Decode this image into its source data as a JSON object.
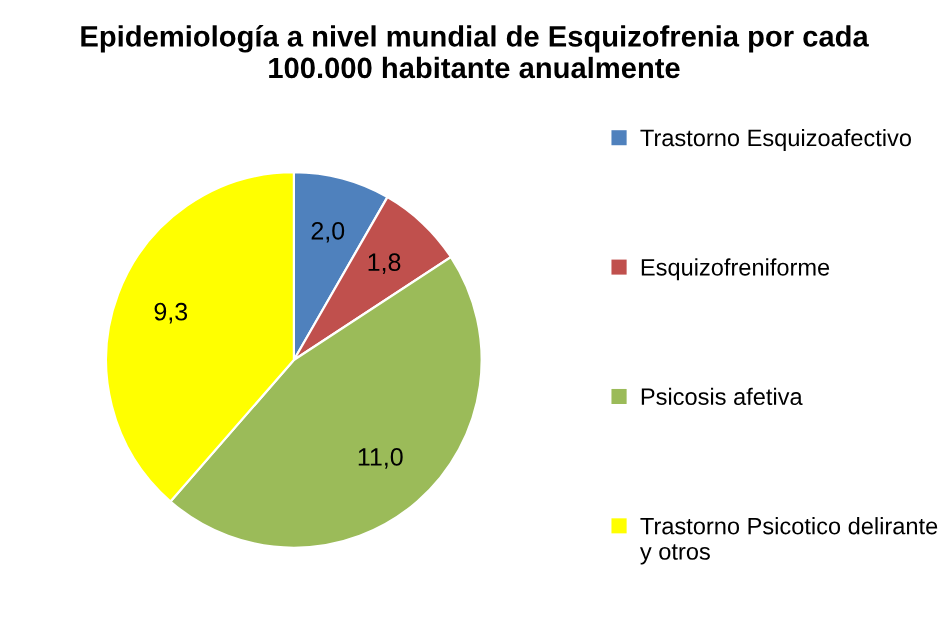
{
  "chart_data": {
    "type": "pie",
    "title": "Epidemiología a nivel mundial de Esquizofrenia por cada\n100.000 habitante anualmente",
    "categories": [
      "Trastorno Esquizoafectivo",
      "Esquizofreniforme",
      "Psicosis afetiva",
      "Trastorno Psicotico delirante y otros"
    ],
    "values": [
      2.0,
      1.8,
      11.0,
      9.3
    ],
    "value_labels": [
      "2,0",
      "1,8",
      "11,0",
      "9,3"
    ],
    "colors": [
      "#4f81bd",
      "#c0504d",
      "#9bbb59",
      "#ffff00"
    ],
    "legend": "right"
  }
}
